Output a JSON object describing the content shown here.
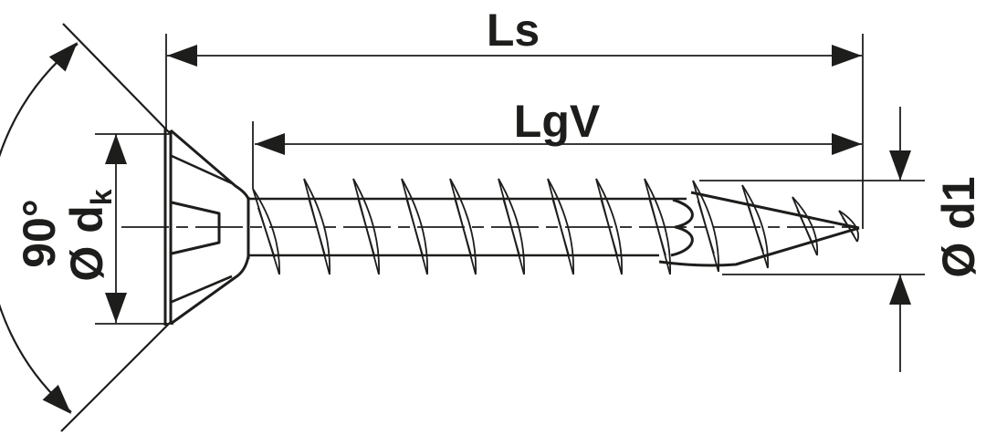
{
  "drawing": {
    "background": "#ffffff",
    "ink": "#1d1d1b",
    "labels": {
      "total_length": "Ls",
      "thread_length": "LgV",
      "head_angle": "90°",
      "head_diameter_main": "Ø d",
      "head_diameter_sub": "k",
      "thread_outer_diameter": "Ø d1"
    }
  }
}
